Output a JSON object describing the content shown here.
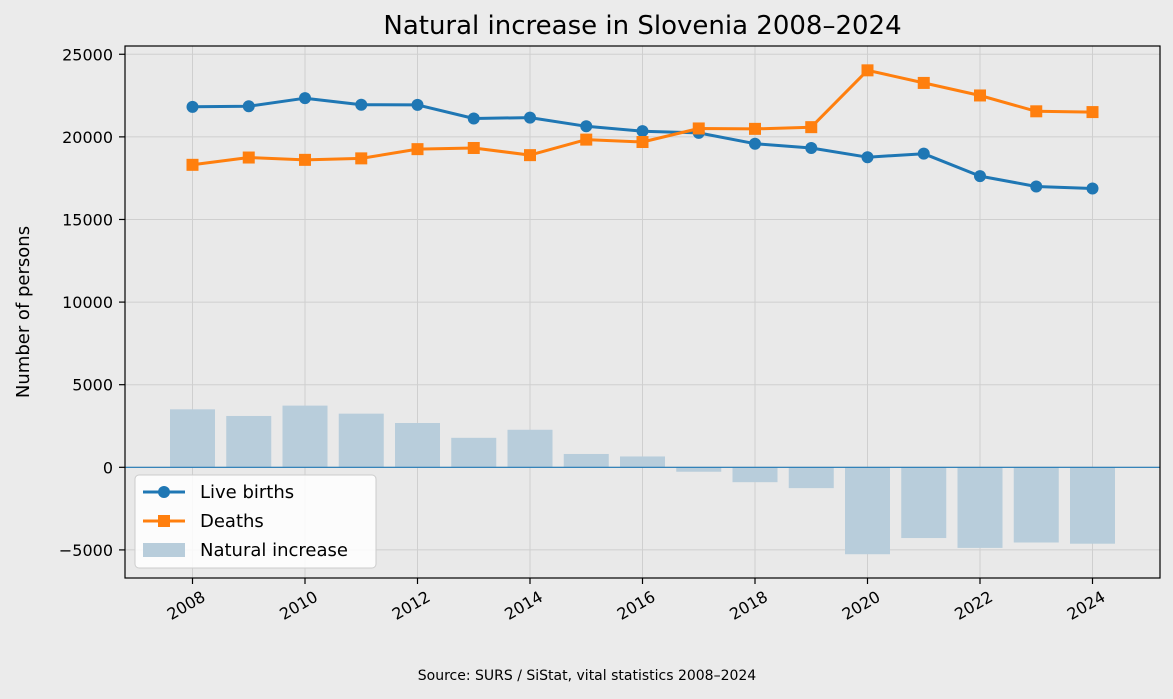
{
  "chart_data": {
    "type": "line",
    "title": "Natural increase in Slovenia 2008–2024",
    "ylabel": "Number of persons",
    "xlabel": "",
    "x": [
      2008,
      2009,
      2010,
      2011,
      2012,
      2013,
      2014,
      2015,
      2016,
      2017,
      2018,
      2019,
      2020,
      2021,
      2022,
      2023,
      2024
    ],
    "xlim": [
      2006.8,
      2025.2
    ],
    "ylim": [
      -6700,
      25500
    ],
    "x_ticks": [
      2008,
      2010,
      2012,
      2014,
      2016,
      2018,
      2020,
      2022,
      2024
    ],
    "y_ticks": [
      -5000,
      0,
      5000,
      10000,
      15000,
      20000,
      25000
    ],
    "y_tick_labels": [
      "−5000",
      "0",
      "5000",
      "10000",
      "15000",
      "20000",
      "25000"
    ],
    "grid": true,
    "legend_position": "lower-left",
    "series": [
      {
        "name": "Live births",
        "kind": "line",
        "marker": "circle",
        "color": "#1f77b4",
        "values": [
          21817,
          21856,
          22343,
          21947,
          21938,
          21111,
          21165,
          20641,
          20345,
          20241,
          19585,
          19328,
          18767,
          18984,
          17627,
          16996,
          16876
        ]
      },
      {
        "name": "Deaths",
        "kind": "line",
        "marker": "square",
        "color": "#ff7f0e",
        "values": [
          18308,
          18750,
          18609,
          18699,
          19257,
          19327,
          18894,
          19834,
          19689,
          20509,
          20485,
          20588,
          24027,
          23265,
          22506,
          21547,
          21500
        ]
      },
      {
        "name": "Natural increase",
        "kind": "bar",
        "color": "#b8cddb",
        "values": [
          3509,
          3106,
          3734,
          3248,
          2681,
          1784,
          2271,
          807,
          656,
          -268,
          -900,
          -1260,
          -5260,
          -4281,
          -4879,
          -4551,
          -4624
        ]
      }
    ],
    "source_note": "Source: SURS / SiStat, vital statistics 2008–2024"
  }
}
